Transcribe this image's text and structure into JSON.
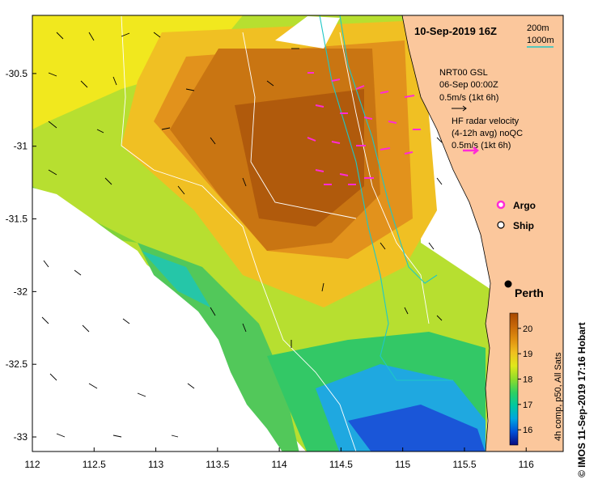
{
  "map": {
    "title": "10-Sep-2019 16Z",
    "credit": "© IMOS 11-Sep-2019 17:16 Hobart",
    "x_ticks": [
      "112",
      "112.5",
      "113",
      "113.5",
      "114",
      "114.5",
      "115",
      "115.5",
      "116"
    ],
    "y_ticks": [
      "-30.5",
      "-31",
      "-31.5",
      "-32",
      "-32.5",
      "-33"
    ],
    "x_range": [
      112,
      116.3
    ],
    "y_range": [
      -30.1,
      -33.1
    ],
    "contours": {
      "label_200": "200m",
      "label_1000": "1000m",
      "color_200": "#1fc7c7",
      "color_1000": "#ffffff"
    },
    "gsl_legend": {
      "title": "NRT00 GSL",
      "date": "06-Sep 00:00Z",
      "scale": "0.5m/s (1kt 6h)"
    },
    "hf_legend": {
      "line1": "HF radar velocity",
      "line2": "(4-12h avg) noQC",
      "scale": "0.5m/s (1kt 6h)",
      "color": "#ff2bd6"
    },
    "markers": {
      "argo": "Argo",
      "ship": "Ship"
    },
    "city": {
      "name": "Perth",
      "lon": 115.86,
      "lat": -31.95
    },
    "colorbar": {
      "ticks": [
        "20",
        "19",
        "18",
        "17",
        "16"
      ],
      "range": [
        15.4,
        20.6
      ],
      "label": "4h comp, p50, All Sats",
      "colors": [
        "#0a0a80",
        "#0050d8",
        "#00a6e0",
        "#00c8a0",
        "#30d060",
        "#8fdc2a",
        "#e0e81a",
        "#f0c020",
        "#e09010",
        "#c86808",
        "#a84800"
      ]
    },
    "colors": {
      "land": "#fbc79c",
      "coast": "#000000"
    }
  }
}
